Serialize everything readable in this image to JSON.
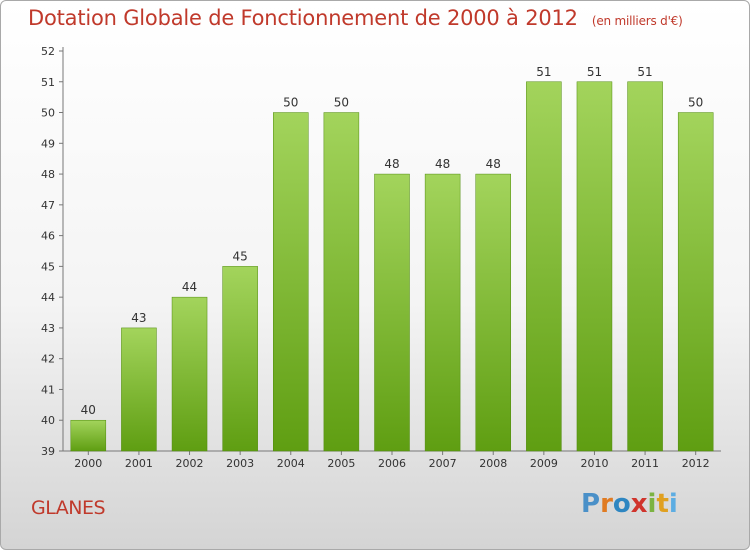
{
  "chart_data": {
    "type": "bar",
    "title": "Dotation Globale de Fonctionnement de 2000 à 2012",
    "subtitle": "(en milliers d'€)",
    "categories": [
      "2000",
      "2001",
      "2002",
      "2003",
      "2004",
      "2005",
      "2006",
      "2007",
      "2008",
      "2009",
      "2010",
      "2011",
      "2012"
    ],
    "values": [
      40,
      43,
      44,
      45,
      50,
      50,
      48,
      48,
      48,
      51,
      51,
      51,
      50
    ],
    "ylim": [
      39,
      52
    ],
    "yticks": [
      39,
      40,
      41,
      42,
      43,
      44,
      45,
      46,
      47,
      48,
      49,
      50,
      51,
      52
    ],
    "grid": false,
    "bar_color_top": "#a3d45c",
    "bar_color_bottom": "#5f9e12"
  },
  "footer": {
    "commune": "GLANES",
    "brand": "Proxiti"
  }
}
